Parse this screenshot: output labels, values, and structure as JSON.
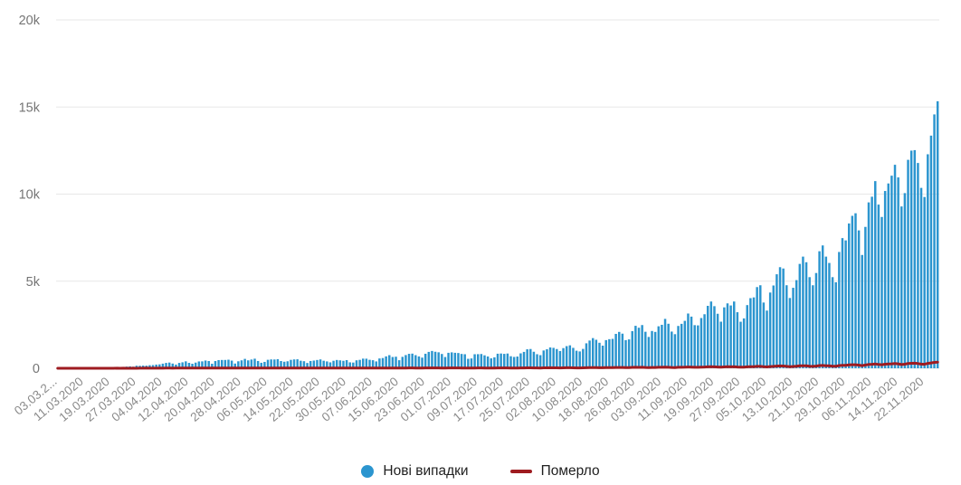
{
  "legend": {
    "new_cases_label": "Нові випадки",
    "deaths_label": "Померло"
  },
  "chart_data": {
    "type": "bar",
    "title": "",
    "xlabel": "",
    "ylabel": "",
    "ylim": [
      0,
      20000
    ],
    "grid": "horizontal",
    "legend_position": "bottom",
    "y_ticks": [
      {
        "label": "0",
        "value": 0
      },
      {
        "label": "5k",
        "value": 5000
      },
      {
        "label": "10k",
        "value": 10000
      },
      {
        "label": "15k",
        "value": 15000
      },
      {
        "label": "20k",
        "value": 20000
      }
    ],
    "x_tick_step": 8,
    "x_tick_labels": [
      "03.03.2...",
      "11.03.2020",
      "19.03.2020",
      "27.03.2020",
      "04.04.2020",
      "12.04.2020",
      "20.04.2020",
      "28.04.2020",
      "06.05.2020",
      "14.05.2020",
      "22.05.2020",
      "30.05.2020",
      "07.06.2020",
      "15.06.2020",
      "23.06.2020",
      "01.07.2020",
      "09.07.2020",
      "17.07.2020",
      "25.07.2020",
      "02.08.2020",
      "10.08.2020",
      "18.08.2020",
      "26.08.2020",
      "03.09.2020",
      "11.09.2020",
      "19.09.2020",
      "27.09.2020",
      "05.10.2020",
      "13.10.2020",
      "21.10.2020",
      "29.10.2020",
      "06.11.2020",
      "14.11.2020",
      "22.11.2020"
    ],
    "x_start_date": "03.03.2020",
    "x_end_date": "26.11.2020",
    "series": [
      {
        "name": "Нові випадки",
        "type": "bar",
        "color": "#2b95cf",
        "values": [
          1,
          0,
          0,
          1,
          0,
          0,
          0,
          2,
          1,
          2,
          3,
          4,
          7,
          10,
          14,
          14,
          26,
          41,
          47,
          62,
          73,
          97,
          109,
          92,
          146,
          143,
          154,
          149,
          175,
          183,
          211,
          224,
          266,
          308,
          328,
          270,
          211,
          308,
          343,
          398,
          311,
          261,
          325,
          392,
          397,
          444,
          415,
          261,
          415,
          467,
          476,
          478,
          492,
          440,
          271,
          401,
          456,
          540,
          455,
          502,
          550,
          418,
          316,
          366,
          487,
          507,
          504,
          522,
          416,
          376,
          402,
          483,
          508,
          516,
          433,
          406,
          304,
          418,
          442,
          476,
          508,
          432,
          394,
          339,
          431,
          476,
          455,
          429,
          468,
          340,
          328,
          457,
          483,
          553,
          550,
          485,
          463,
          394,
          563,
          588,
          683,
          753,
          648,
          664,
          463,
          656,
          758,
          829,
          841,
          753,
          681,
          612,
          833,
          940,
          994,
          948,
          917,
          821,
          646,
          889,
          914,
          889,
          876,
          823,
          807,
          543,
          564,
          807,
          810,
          819,
          744,
          678,
          570,
          628,
          836,
          848,
          827,
          847,
          691,
          651,
          673,
          856,
          940,
          1090,
          1106,
          948,
          807,
          753,
          1022,
          1094,
          1197,
          1172,
          1104,
          990,
          1158,
          1271,
          1318,
          1172,
          1008,
          967,
          1112,
          1433,
          1592,
          1732,
          1637,
          1464,
          1299,
          1616,
          1670,
          1688,
          1974,
          2088,
          1987,
          1616,
          1658,
          2134,
          2438,
          2328,
          2481,
          2096,
          1799,
          2141,
          2088,
          2411,
          2495,
          2836,
          2556,
          2107,
          1958,
          2430,
          2551,
          2723,
          3144,
          2966,
          2476,
          2462,
          2884,
          3103,
          3584,
          3833,
          3565,
          3130,
          2675,
          3497,
          3727,
          3606,
          3833,
          3218,
          2671,
          2864,
          3627,
          4027,
          4069,
          4661,
          4766,
          3774,
          3312,
          4348,
          4753,
          5397,
          5804,
          5728,
          4768,
          4035,
          4620,
          5062,
          5992,
          6410,
          6088,
          5231,
          4766,
          5469,
          6719,
          7053,
          6410,
          6046,
          5231,
          4936,
          6677,
          7474,
          7342,
          8312,
          8752,
          8899,
          7916,
          6505,
          8117,
          9524,
          9850,
          10746,
          9397,
          8687,
          10179,
          10611,
          11057,
          11683,
          10958,
          9290,
          10057,
          11968,
          12496,
          12524,
          11787,
          10357,
          9832,
          12287,
          13357,
          14575,
          15331
        ]
      },
      {
        "name": "Померло",
        "type": "line",
        "color": "#9e1b20",
        "values": [
          0,
          0,
          0,
          0,
          0,
          0,
          0,
          0,
          0,
          1,
          0,
          0,
          1,
          0,
          2,
          0,
          1,
          2,
          3,
          1,
          3,
          0,
          2,
          5,
          1,
          3,
          5,
          8,
          5,
          5,
          4,
          8,
          5,
          9,
          8,
          7,
          10,
          8,
          9,
          12,
          10,
          9,
          10,
          12,
          13,
          11,
          13,
          9,
          12,
          14,
          13,
          12,
          14,
          13,
          10,
          12,
          14,
          15,
          13,
          14,
          13,
          12,
          10,
          11,
          13,
          15,
          14,
          12,
          13,
          11,
          12,
          14,
          15,
          13,
          12,
          11,
          9,
          12,
          13,
          14,
          15,
          12,
          11,
          10,
          13,
          14,
          12,
          11,
          13,
          10,
          9,
          12,
          13,
          14,
          15,
          13,
          11,
          9,
          14,
          15,
          17,
          18,
          16,
          15,
          12,
          16,
          18,
          19,
          23,
          18,
          16,
          13,
          19,
          21,
          23,
          22,
          20,
          18,
          15,
          20,
          21,
          20,
          19,
          18,
          17,
          12,
          13,
          18,
          19,
          20,
          17,
          15,
          12,
          14,
          19,
          20,
          21,
          20,
          16,
          14,
          15,
          20,
          22,
          26,
          27,
          22,
          19,
          17,
          24,
          26,
          29,
          28,
          26,
          22,
          27,
          30,
          31,
          28,
          23,
          21,
          25,
          33,
          37,
          41,
          38,
          33,
          29,
          37,
          39,
          40,
          47,
          49,
          46,
          37,
          38,
          50,
          57,
          54,
          58,
          48,
          41,
          49,
          48,
          56,
          58,
          66,
          59,
          48,
          44,
          56,
          59,
          63,
          73,
          69,
          57,
          56,
          66,
          72,
          83,
          89,
          82,
          72,
          61,
          80,
          86,
          83,
          89,
          74,
          61,
          65,
          83,
          93,
          94,
          108,
          110,
          87,
          76,
          100,
          110,
          125,
          134,
          132,
          110,
          93,
          106,
          117,
          138,
          148,
          141,
          121,
          110,
          126,
          155,
          163,
          148,
          140,
          121,
          114,
          154,
          173,
          170,
          192,
          202,
          205,
          183,
          150,
          187,
          220,
          227,
          248,
          217,
          200,
          235,
          245,
          255,
          270,
          253,
          214,
          232,
          276,
          288,
          289,
          272,
          239,
          227,
          283,
          308,
          336,
          354
        ]
      }
    ],
    "colors": {
      "grid": "#e7e7e7",
      "y_axis_text": "#757575",
      "x_axis_text": "#8a8a8a",
      "legend_text": "#1f1f1f"
    }
  }
}
